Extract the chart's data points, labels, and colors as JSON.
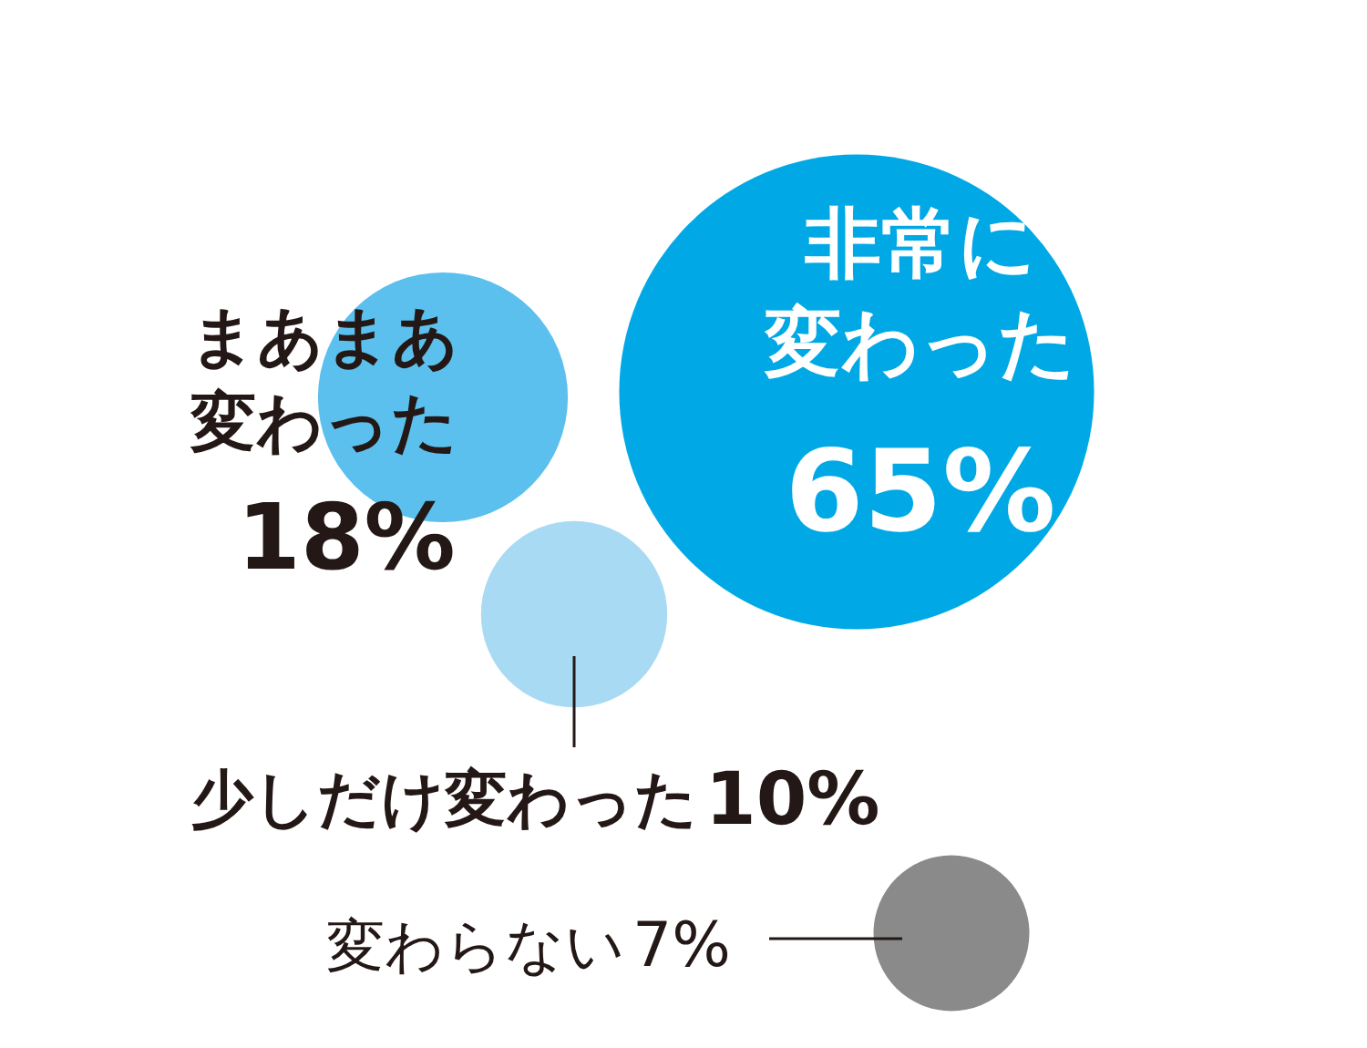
{
  "chart_data": {
    "type": "other",
    "categories": [
      "非常に変わった",
      "まあまあ変わった",
      "少しだけ変わった",
      "変わらない"
    ],
    "values": [
      65,
      18,
      10,
      7
    ],
    "value_labels": [
      "65%",
      "18%",
      "10%",
      "7%"
    ],
    "colors": [
      "#00a9e6",
      "#5bc0ee",
      "#a8daf4",
      "#8a8a8a"
    ]
  }
}
